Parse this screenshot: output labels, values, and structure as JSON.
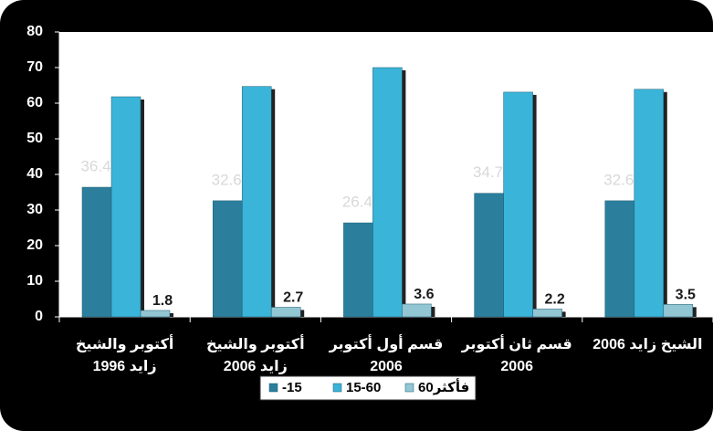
{
  "chart_data": {
    "type": "bar",
    "categories": [
      [
        "أكتوبر والشيخ",
        "زايد 1996"
      ],
      [
        "أكتوبر والشيخ",
        "زايد 2006"
      ],
      [
        "قسم أول أكتوبر",
        "2006"
      ],
      [
        "قسم ثان أكتوبر",
        "2006"
      ],
      [
        "الشيخ زايد 2006"
      ]
    ],
    "series": [
      {
        "name": "-15",
        "color": "#2b7f9c",
        "values": [
          36.4,
          32.6,
          26.4,
          34.7,
          32.6
        ],
        "value_labels": [
          "36.4",
          "32.6",
          "26.4",
          "34.7",
          "32.6"
        ]
      },
      {
        "name": "15-60",
        "color": "#3ab4d8",
        "values": [
          61.8,
          64.7,
          70.0,
          63.1,
          63.9
        ],
        "value_labels": [
          "61.8",
          "64.7",
          "70.0",
          "63.1",
          "63.9"
        ]
      },
      {
        "name": "60فأكثر",
        "color": "#92c6d3",
        "values": [
          1.8,
          2.7,
          3.6,
          2.2,
          3.5
        ],
        "value_labels": [
          "1.8",
          "2.7",
          "3.6",
          "2.2",
          "3.5"
        ]
      }
    ],
    "ylim": [
      0,
      80
    ],
    "yticks": [
      0,
      10,
      20,
      30,
      40,
      50,
      60,
      70,
      80
    ],
    "grid": false
  }
}
